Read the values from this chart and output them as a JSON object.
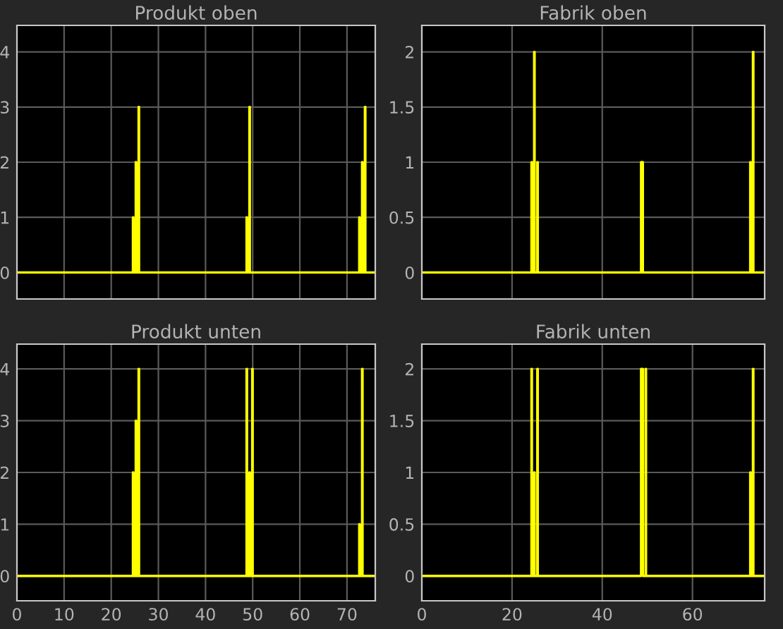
{
  "chart_data": [
    {
      "type": "step",
      "title": "Produkt oben",
      "xlim": [
        0,
        76
      ],
      "ylim": [
        -0.48,
        4.48
      ],
      "xticks": [
        0,
        10,
        20,
        30,
        40,
        50,
        60,
        70
      ],
      "yticks": [
        0,
        1,
        2,
        3,
        4
      ],
      "grid": true,
      "tick_labels": "y",
      "series": [
        {
          "color": "#ffff00",
          "x": [
            0,
            24.6,
            24.7,
            25.2,
            25.3,
            25.8,
            25.9,
            48.7,
            48.8,
            49.3,
            49.4,
            72.6,
            72.7,
            73.2,
            73.3,
            73.8,
            73.9,
            76
          ],
          "values": [
            0,
            1,
            0,
            2,
            0,
            3,
            0,
            1,
            0,
            3,
            0,
            1,
            0,
            2,
            0,
            3,
            0,
            0
          ]
        }
      ]
    },
    {
      "type": "step",
      "title": "Fabrik oben",
      "xlim": [
        0,
        76
      ],
      "ylim": [
        -0.24,
        2.24
      ],
      "xticks": [
        0,
        20,
        40,
        60
      ],
      "yticks": [
        0,
        0.5,
        1,
        1.5,
        2
      ],
      "grid": true,
      "tick_labels": "y",
      "series": [
        {
          "color": "#ffff00",
          "x": [
            0,
            24.3,
            24.4,
            24.9,
            25.0,
            25.6,
            25.7,
            48.6,
            49.0,
            72.8,
            72.9,
            73.4,
            73.5,
            76
          ],
          "values": [
            0,
            1,
            0,
            2,
            0,
            1,
            0,
            1,
            0,
            1,
            0,
            2,
            0,
            0
          ]
        }
      ]
    },
    {
      "type": "step",
      "title": "Produkt unten",
      "xlim": [
        0,
        76
      ],
      "ylim": [
        -0.48,
        4.48
      ],
      "xticks": [
        0,
        10,
        20,
        30,
        40,
        50,
        60,
        70
      ],
      "yticks": [
        0,
        1,
        2,
        3,
        4
      ],
      "grid": true,
      "series": [
        {
          "color": "#ffff00",
          "x": [
            0,
            24.6,
            24.7,
            25.2,
            25.3,
            25.8,
            25.9,
            48.7,
            48.8,
            49.3,
            49.4,
            49.9,
            50.0,
            72.6,
            72.7,
            73.2,
            73.3,
            76
          ],
          "values": [
            0,
            2,
            0,
            3,
            0,
            4,
            0,
            4,
            0,
            2,
            0,
            4,
            0,
            1,
            0,
            4,
            0,
            0
          ]
        }
      ]
    },
    {
      "type": "step",
      "title": "Fabrik unten",
      "xlim": [
        0,
        76
      ],
      "ylim": [
        -0.24,
        2.24
      ],
      "xticks": [
        0,
        20,
        40,
        60
      ],
      "yticks": [
        0,
        0.5,
        1,
        1.5,
        2
      ],
      "grid": true,
      "series": [
        {
          "color": "#ffff00",
          "x": [
            0,
            24.3,
            24.4,
            24.9,
            25.0,
            25.6,
            25.7,
            48.6,
            49.0,
            49.6,
            49.7,
            72.8,
            72.9,
            73.4,
            73.5,
            76
          ],
          "values": [
            0,
            2,
            0,
            1,
            0,
            2,
            0,
            2,
            0,
            2,
            0,
            1,
            0,
            2,
            0,
            0
          ]
        }
      ]
    }
  ]
}
